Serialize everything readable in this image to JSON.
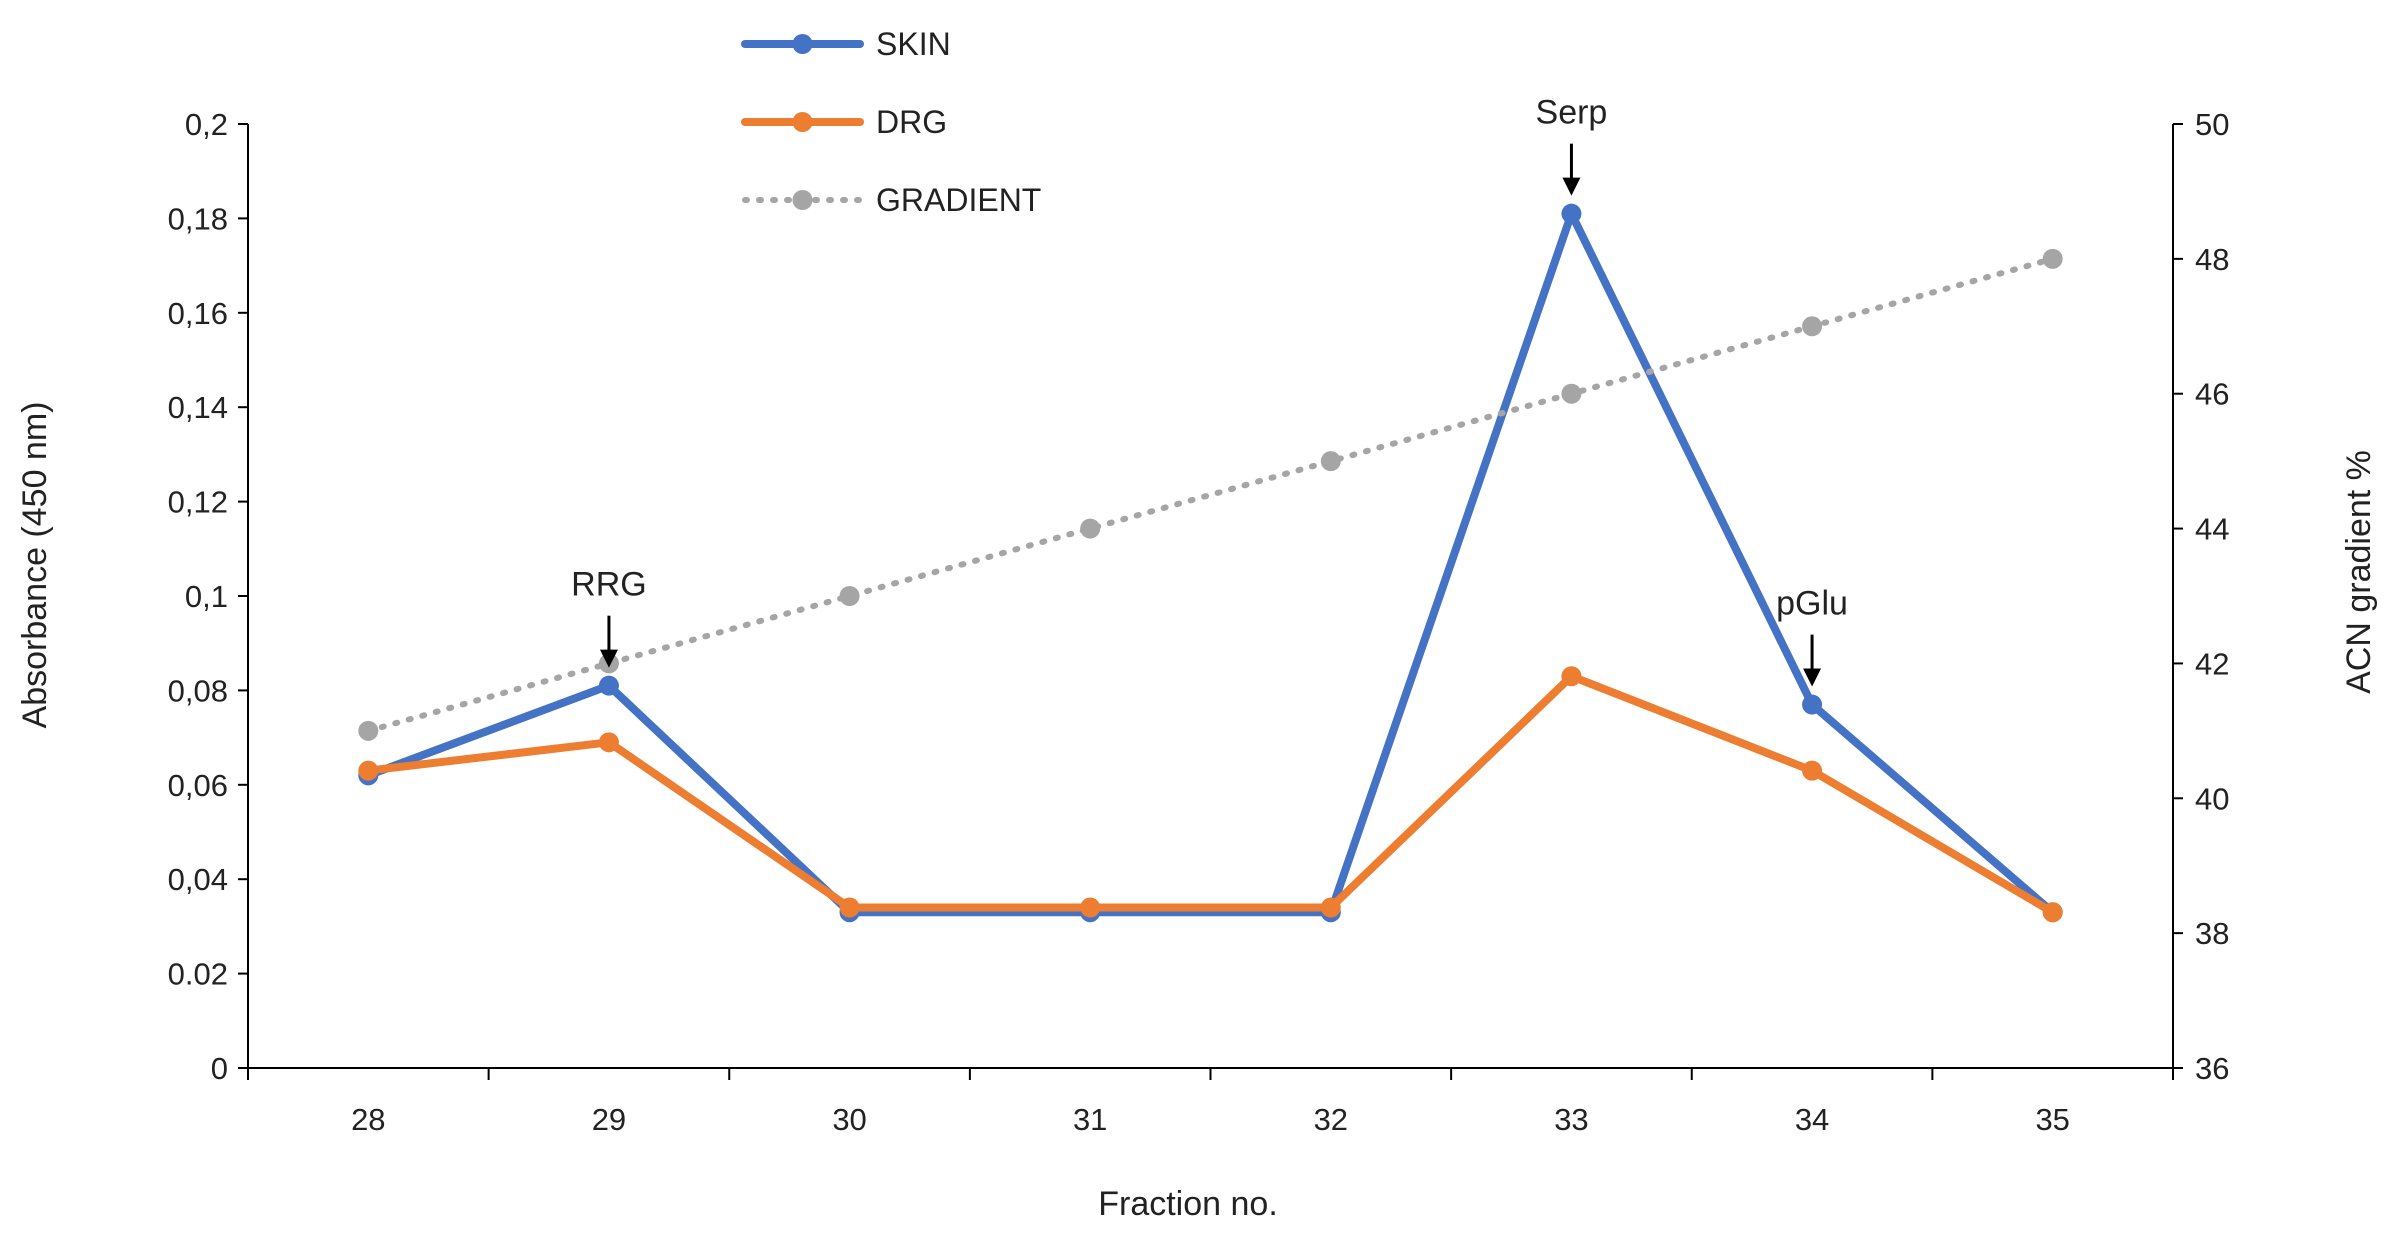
{
  "chart_data": {
    "type": "line",
    "categories": [
      "28",
      "29",
      "30",
      "31",
      "32",
      "33",
      "34",
      "35"
    ],
    "series": [
      {
        "name": "SKIN",
        "axis": "left",
        "color": "#4472C4",
        "style": "solid",
        "values": [
          0.062,
          0.081,
          0.033,
          0.033,
          0.033,
          0.181,
          0.077,
          0.033
        ]
      },
      {
        "name": "DRG",
        "axis": "left",
        "color": "#ED7D31",
        "style": "solid",
        "values": [
          0.063,
          0.069,
          0.034,
          0.034,
          0.034,
          0.083,
          0.063,
          0.033
        ]
      },
      {
        "name": "GRADIENT",
        "axis": "right",
        "color": "#A5A5A5",
        "style": "dotted",
        "values": [
          41,
          42,
          43,
          44,
          45,
          46,
          47,
          48
        ]
      }
    ],
    "xlabel": "Fraction no.",
    "ylabel": "Absorbance (450 nm)",
    "y2label": "ACN gradient %",
    "ylim": [
      0,
      0.2
    ],
    "y2lim": [
      36,
      50
    ],
    "yticks": [
      0,
      0.02,
      0.04,
      0.06,
      0.08,
      0.1,
      0.12,
      0.14,
      0.16,
      0.18,
      0.2
    ],
    "ytick_labels": [
      "0",
      "0.02",
      "0,04",
      "0,06",
      "0,08",
      "0,1",
      "0,12",
      "0,14",
      "0,16",
      "0,18",
      "0,2"
    ],
    "y2ticks": [
      36,
      38,
      40,
      42,
      44,
      46,
      48,
      50
    ],
    "y2tick_labels": [
      "36",
      "38",
      "40",
      "42",
      "44",
      "46",
      "48",
      "50"
    ],
    "legend": {
      "position": "top-left",
      "entries": [
        "SKIN",
        "DRG",
        "GRADIENT"
      ]
    },
    "annotations": [
      {
        "text": "RRG",
        "x": "29",
        "y": 0.081
      },
      {
        "text": "Serp",
        "x": "33",
        "y": 0.181
      },
      {
        "text": "pGlu",
        "x": "34",
        "y": 0.077
      }
    ],
    "grid": false
  },
  "colors": {
    "axis": "#000000",
    "text": "#222222",
    "arrow": "#000000"
  }
}
